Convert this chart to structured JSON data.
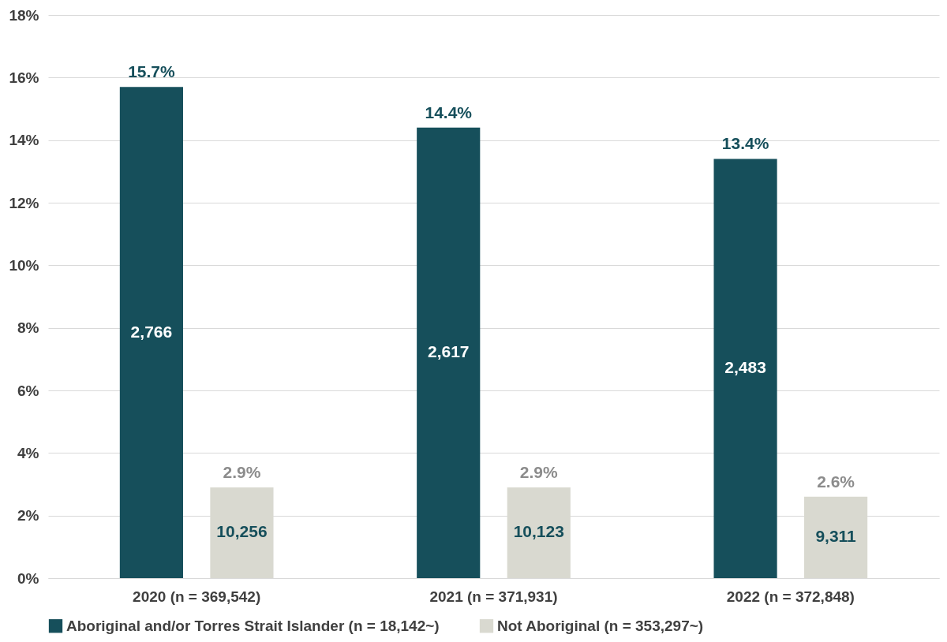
{
  "chart_data": {
    "type": "bar",
    "categories": [
      "2020 (n = 369,542)",
      "2021 (n = 371,931)",
      "2022 (n = 372,848)"
    ],
    "series": [
      {
        "name": "Aboriginal and/or Torres Strait Islander (n = 18,142~)",
        "color": "#164f5b",
        "values": [
          15.7,
          14.4,
          13.4
        ],
        "value_labels": [
          "15.7%",
          "14.4%",
          "13.4%"
        ]
      },
      {
        "name": "Not Aboriginal  (n = 353,297~)",
        "color": "#d9d9d0",
        "values": [
          2.9,
          2.9,
          2.6
        ],
        "value_labels": [
          "2.9%",
          "2.9%",
          "2.6%"
        ]
      }
    ],
    "annotations": [
      "2,766",
      "2,617",
      "2,483",
      "10,256",
      "10,123",
      "9,311"
    ],
    "ylim": [
      0,
      18
    ],
    "yticks": [
      {
        "value": 0,
        "label": "0%"
      },
      {
        "value": 2,
        "label": "2%"
      },
      {
        "value": 4,
        "label": "4%"
      },
      {
        "value": 6,
        "label": "6%"
      },
      {
        "value": 8,
        "label": "8%"
      },
      {
        "value": 10,
        "label": "10%"
      },
      {
        "value": 12,
        "label": "12%"
      },
      {
        "value": 14,
        "label": "14%"
      },
      {
        "value": 16,
        "label": "16%"
      },
      {
        "value": 18,
        "label": "18%"
      }
    ],
    "grid": "y",
    "legend": "bottom"
  }
}
